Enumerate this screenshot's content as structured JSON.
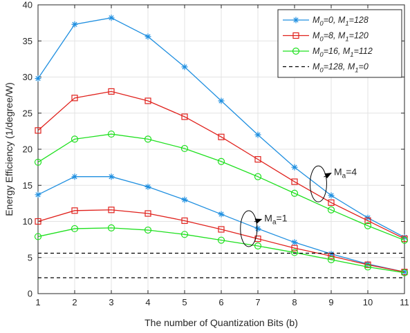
{
  "chart_data": {
    "type": "line",
    "title": "",
    "xlabel": "The number of Quantization Bits (b)",
    "ylabel": "Energy Efficiency (1/degree/W)",
    "xlim": [
      1,
      11
    ],
    "ylim": [
      0,
      40
    ],
    "xticks": [
      1,
      2,
      3,
      4,
      5,
      6,
      7,
      8,
      9,
      10,
      11
    ],
    "yticks": [
      0,
      5,
      10,
      15,
      20,
      25,
      30,
      35,
      40
    ],
    "grid": true,
    "legend_position": "top-right",
    "x": [
      1,
      2,
      3,
      4,
      5,
      6,
      7,
      8,
      9,
      10,
      11
    ],
    "series": [
      {
        "key": "m0-0",
        "legend": {
          "a": "M",
          "a_sub": "0",
          "b": "=0, M",
          "b_sub": "1",
          "c": "=128"
        },
        "color": "#1f8fe0",
        "marker": "star",
        "dash": "solid",
        "group": "Ma=4",
        "values": [
          29.8,
          37.3,
          38.2,
          35.6,
          31.4,
          26.7,
          22.0,
          17.5,
          13.6,
          10.5,
          7.8
        ]
      },
      {
        "key": "m0-8",
        "legend": {
          "a": "M",
          "a_sub": "0",
          "b": "=8, M",
          "b_sub": "1",
          "c": "=120"
        },
        "color": "#e0201b",
        "marker": "square",
        "dash": "solid",
        "group": "Ma=4",
        "values": [
          22.6,
          27.1,
          28.0,
          26.7,
          24.5,
          21.7,
          18.6,
          15.5,
          12.6,
          10.1,
          7.6
        ]
      },
      {
        "key": "m0-16",
        "legend": {
          "a": "M",
          "a_sub": "0",
          "b": "=16, M",
          "b_sub": "1",
          "c": "=112"
        },
        "color": "#1ee01e",
        "marker": "circle",
        "dash": "solid",
        "group": "Ma=4",
        "values": [
          18.2,
          21.4,
          22.1,
          21.4,
          20.1,
          18.3,
          16.2,
          13.9,
          11.6,
          9.4,
          7.4
        ]
      },
      {
        "key": "m0-0-ma1",
        "legend": null,
        "color": "#1f8fe0",
        "marker": "star",
        "dash": "solid",
        "group": "Ma=1",
        "values": [
          13.7,
          16.2,
          16.2,
          14.8,
          13.0,
          11.0,
          9.0,
          7.1,
          5.5,
          4.1,
          3.0
        ]
      },
      {
        "key": "m0-8-ma1",
        "legend": null,
        "color": "#e0201b",
        "marker": "square",
        "dash": "solid",
        "group": "Ma=1",
        "values": [
          10.0,
          11.5,
          11.6,
          11.1,
          10.1,
          8.9,
          7.6,
          6.3,
          5.2,
          4.0,
          3.0
        ]
      },
      {
        "key": "m0-16-ma1",
        "legend": null,
        "color": "#1ee01e",
        "marker": "circle",
        "dash": "solid",
        "group": "Ma=1",
        "values": [
          7.9,
          9.0,
          9.1,
          8.8,
          8.2,
          7.4,
          6.6,
          5.7,
          4.7,
          3.7,
          2.9
        ]
      },
      {
        "key": "m0-128",
        "legend": {
          "a": "M",
          "a_sub": "0",
          "b": "=128, M",
          "b_sub": "1",
          "c": "=0"
        },
        "color": "#000000",
        "marker": "none",
        "dash": "dashed",
        "group": "Ma=4",
        "values": [
          5.6,
          5.6,
          5.6,
          5.6,
          5.6,
          5.6,
          5.6,
          5.6,
          5.6,
          5.6,
          5.6
        ]
      },
      {
        "key": "m0-128-ma1",
        "legend": null,
        "color": "#000000",
        "marker": "none",
        "dash": "dashed",
        "group": "Ma=1",
        "values": [
          2.2,
          2.2,
          2.2,
          2.2,
          2.2,
          2.2,
          2.2,
          2.2,
          2.2,
          2.2,
          2.2
        ]
      }
    ],
    "annotations": [
      {
        "key": "ma1",
        "base": "M",
        "sub": "a",
        "suffix": "=1",
        "ellipse_at": {
          "x": 6.75,
          "y": 9.0
        },
        "arrow_to": {
          "x": 7.1,
          "y": 10.3
        }
      },
      {
        "key": "ma4",
        "base": "M",
        "sub": "a",
        "suffix": "=4",
        "ellipse_at": {
          "x": 8.65,
          "y": 15.2
        },
        "arrow_to": {
          "x": 9.0,
          "y": 16.7
        }
      }
    ]
  }
}
